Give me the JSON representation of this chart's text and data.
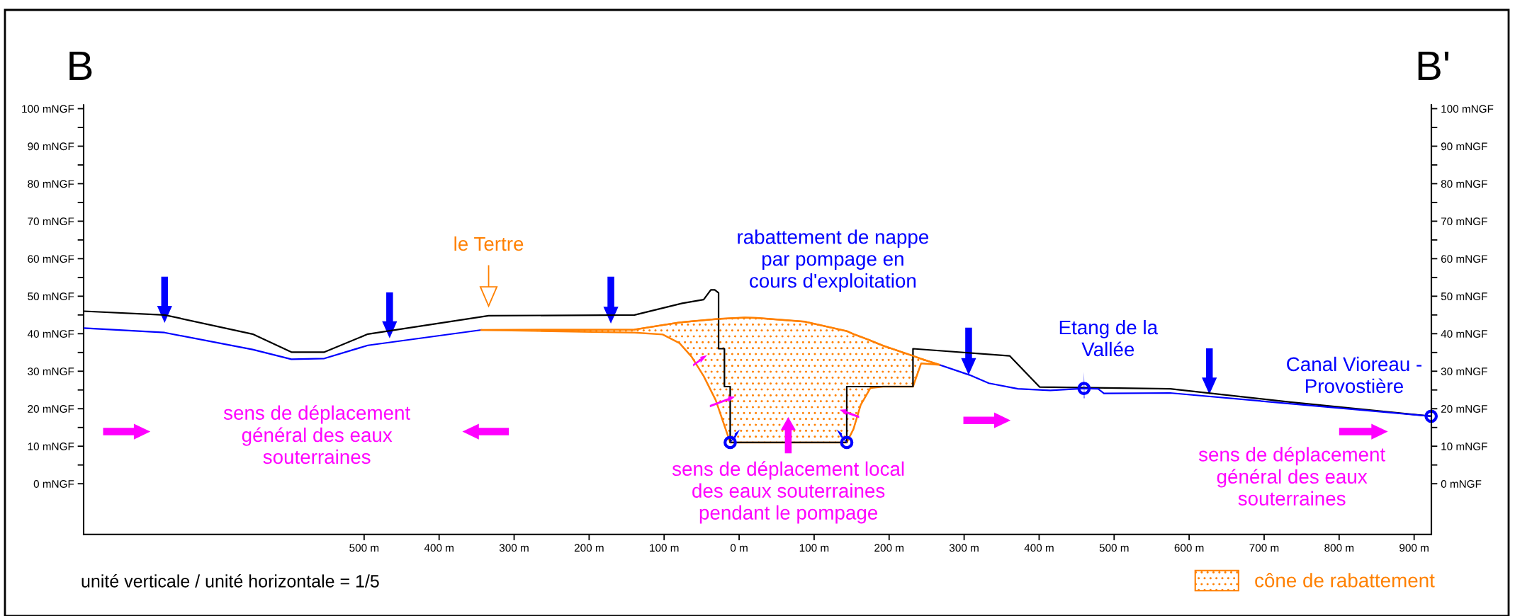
{
  "chart_data": {
    "type": "line",
    "xlim": [
      -874,
      923
    ],
    "xticks": [
      {
        "value": -500,
        "label": "500 m"
      },
      {
        "value": -400,
        "label": "400 m"
      },
      {
        "value": -300,
        "label": "300 m"
      },
      {
        "value": -200,
        "label": "200 m"
      },
      {
        "value": -100,
        "label": "100 m"
      },
      {
        "value": 0,
        "label": "0 m"
      },
      {
        "value": 100,
        "label": "100 m"
      },
      {
        "value": 200,
        "label": "200 m"
      },
      {
        "value": 300,
        "label": "300 m"
      },
      {
        "value": 400,
        "label": "400 m"
      },
      {
        "value": 500,
        "label": "500 m"
      },
      {
        "value": 600,
        "label": "600 m"
      },
      {
        "value": 700,
        "label": "700 m"
      },
      {
        "value": 800,
        "label": "800 m"
      },
      {
        "value": 900,
        "label": "900 m"
      }
    ],
    "ylim": [
      -13.5,
      101
    ],
    "yticks": [
      {
        "value": 0,
        "label": "0 mNGF"
      },
      {
        "value": 5,
        "label": null
      },
      {
        "value": 10,
        "label": "10 mNGF"
      },
      {
        "value": 15,
        "label": null
      },
      {
        "value": 20,
        "label": "20 mNGF"
      },
      {
        "value": 25,
        "label": null
      },
      {
        "value": 30,
        "label": "30 mNGF"
      },
      {
        "value": 35,
        "label": null
      },
      {
        "value": 40,
        "label": "40 mNGF"
      },
      {
        "value": 45,
        "label": null
      },
      {
        "value": 50,
        "label": "50 mNGF"
      },
      {
        "value": 55,
        "label": null
      },
      {
        "value": 60,
        "label": "60 mNGF"
      },
      {
        "value": 65,
        "label": null
      },
      {
        "value": 70,
        "label": "70 mNGF"
      },
      {
        "value": 75,
        "label": null
      },
      {
        "value": 80,
        "label": "80 mNGF"
      },
      {
        "value": 85,
        "label": null
      },
      {
        "value": 90,
        "label": "90 mNGF"
      },
      {
        "value": 95,
        "label": null
      },
      {
        "value": 100,
        "label": "100 mNGF"
      }
    ],
    "y2lim": [
      -13.5,
      101
    ],
    "y2ticks": [
      {
        "value": 0,
        "label": "0 mNGF"
      },
      {
        "value": 5,
        "label": null
      },
      {
        "value": 10,
        "label": "10 mNGF"
      },
      {
        "value": 15,
        "label": null
      },
      {
        "value": 20,
        "label": "20 mNGF"
      },
      {
        "value": 25,
        "label": null
      },
      {
        "value": 30,
        "label": "30 mNGF"
      },
      {
        "value": 35,
        "label": null
      },
      {
        "value": 40,
        "label": "40 mNGF"
      },
      {
        "value": 45,
        "label": null
      },
      {
        "value": 50,
        "label": "50 mNGF"
      },
      {
        "value": 55,
        "label": null
      },
      {
        "value": 60,
        "label": "60 mNGF"
      },
      {
        "value": 65,
        "label": null
      },
      {
        "value": 70,
        "label": "70 mNGF"
      },
      {
        "value": 75,
        "label": null
      },
      {
        "value": 80,
        "label": "80 mNGF"
      },
      {
        "value": 85,
        "label": null
      },
      {
        "value": 90,
        "label": "90 mNGF"
      },
      {
        "value": 95,
        "label": null
      },
      {
        "value": 100,
        "label": "100 mNGF"
      }
    ],
    "legend": "bottom right",
    "annotations": [
      "B",
      "B'",
      "le Tertre",
      "rabattement de nappe\npar pompage en\ncours d'exploitation",
      {
        "text": "Etang de la\nVallée",
        "x": 459.9,
        "y": 25.4
      },
      {
        "text": "Canal Vioreau -\nProvostière",
        "x": 922.7,
        "y": 18.0
      },
      "sens de déplacement\ngénéral des eaux\nsouterraines",
      "sens de déplacement local\ndes eaux souterraines\npendant le pompage",
      "sens de déplacement\ngénéral des eaux\nsouterraines",
      "unité verticale / unité horizontale = 1/5"
    ],
    "series": [
      {
        "color": "#000000",
        "x": [
          -873.6,
          -766,
          -648.7,
          -597,
          -553,
          -495,
          -334,
          -139.5,
          -76,
          -47.3,
          -37.7,
          -32.5,
          -27.4,
          -27.4,
          -19.6,
          -19.6,
          -11.9,
          -11.9,
          143.5,
          143.5,
          231.8,
          231.8,
          360.7,
          400.6,
          574.7,
          732.5,
          922.7
        ],
        "values": [
          46.0,
          45.0,
          39.9,
          35.1,
          35.1,
          39.9,
          44.8,
          45.0,
          48.1,
          49.1,
          51.7,
          51.7,
          50.9,
          36.0,
          36.0,
          25.9,
          25.9,
          11.0,
          11.0,
          25.9,
          25.9,
          36.0,
          34.1,
          25.8,
          25.3,
          21.8,
          18.0
        ]
      },
      {
        "color": "#0000ff",
        "x": [
          -873.6,
          -766,
          -648.7,
          -597,
          -553,
          -495,
          -343.8,
          0,
          267.3,
          307.2,
          333,
          371.7,
          414.8,
          459.9,
          478.6,
          486.4,
          574.7,
          922.7
        ],
        "values": [
          41.5,
          40.3,
          35.8,
          33.2,
          33.4,
          36.9,
          41.0,
          null,
          31.7,
          29.0,
          26.8,
          25.3,
          24.9,
          25.4,
          25.3,
          24.1,
          24.2,
          18.0
        ]
      },
      {
        "type": "line",
        "name": "cône de rabattement",
        "color": "#ff8000",
        "x": [
          -343.8,
          -139.5,
          -102,
          -79.5,
          -63.5,
          -47.3,
          -31.2,
          -11.9,
          7.5,
          23.6,
          88,
          143.5,
          152.5,
          162.1,
          175,
          192,
          231.8,
          242.7,
          267.3
        ],
        "values": [
          41.0,
          41.1,
          42.3,
          43.0,
          43.3,
          43.6,
          43.9,
          44.1,
          44.3,
          44.2,
          43.2,
          40.7,
          39.9,
          39.2,
          38.2,
          36.8,
          34.1,
          33.3,
          31.7
        ],
        "upper": [
          41.0,
          41.1,
          42.3,
          43.0,
          43.3,
          43.6,
          43.9,
          44.1,
          44.3,
          44.2,
          43.2,
          40.7,
          39.9,
          39.2,
          38.2,
          36.8,
          34.1,
          33.3,
          31.7
        ],
        "lower": [
          41.0,
          40.3,
          39.8,
          37.5,
          33.9,
          28.7,
          22.3,
          11.0,
          11.0,
          11.0,
          11.0,
          11.0,
          14.6,
          21.0,
          25.5,
          25.9,
          25.9,
          32.1,
          31.7
        ]
      },
      {
        "type": "scatter",
        "color": "#0000ff",
        "marker": "circle",
        "x": [
          -11.9,
          143.5,
          459.9,
          922.7
        ],
        "values": [
          11.0,
          11.0,
          25.4,
          18.0
        ]
      }
    ]
  }
}
